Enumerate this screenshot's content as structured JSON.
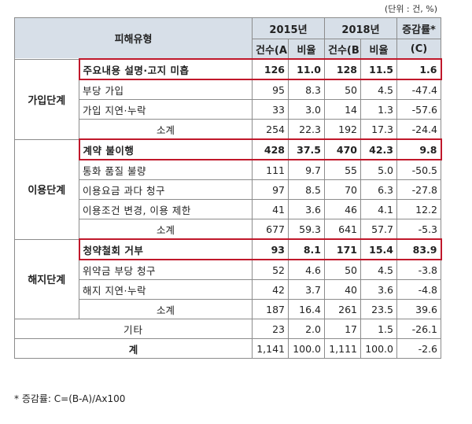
{
  "unit_note": "(단위 : 건, %)",
  "headers": {
    "type": "피해유형",
    "y2015": "2015년",
    "y2018": "2018년",
    "change": "증감률*",
    "count_a": "건수(A)",
    "ratio_a": "비율",
    "count_b": "건수(B)",
    "ratio_b": "비율",
    "change_c": "(C)"
  },
  "groups": [
    {
      "stage": "가입단계",
      "rows": [
        {
          "item": "주요내용 설명·고지 미흡",
          "c15": "126",
          "r15": "11.0",
          "c18": "128",
          "r18": "11.5",
          "chg": "1.6",
          "highlight": true
        },
        {
          "item": "부당 가입",
          "c15": "95",
          "r15": "8.3",
          "c18": "50",
          "r18": "4.5",
          "chg": "-47.4"
        },
        {
          "item": "가입 지연·누락",
          "c15": "33",
          "r15": "3.0",
          "c18": "14",
          "r18": "1.3",
          "chg": "-57.6"
        },
        {
          "item": "소계",
          "c15": "254",
          "r15": "22.3",
          "c18": "192",
          "r18": "17.3",
          "chg": "-24.4",
          "subtotal": true
        }
      ]
    },
    {
      "stage": "이용단계",
      "rows": [
        {
          "item": "계약 불이행",
          "c15": "428",
          "r15": "37.5",
          "c18": "470",
          "r18": "42.3",
          "chg": "9.8",
          "highlight": true
        },
        {
          "item": "통화 품질 불량",
          "c15": "111",
          "r15": "9.7",
          "c18": "55",
          "r18": "5.0",
          "chg": "-50.5"
        },
        {
          "item": "이용요금 과다 청구",
          "c15": "97",
          "r15": "8.5",
          "c18": "70",
          "r18": "6.3",
          "chg": "-27.8"
        },
        {
          "item": "이용조건 변경, 이용 제한",
          "c15": "41",
          "r15": "3.6",
          "c18": "46",
          "r18": "4.1",
          "chg": "12.2"
        },
        {
          "item": "소계",
          "c15": "677",
          "r15": "59.3",
          "c18": "641",
          "r18": "57.7",
          "chg": "-5.3",
          "subtotal": true
        }
      ]
    },
    {
      "stage": "해지단계",
      "rows": [
        {
          "item": "청약철회 거부",
          "c15": "93",
          "r15": "8.1",
          "c18": "171",
          "r18": "15.4",
          "chg": "83.9",
          "highlight": true
        },
        {
          "item": "위약금 부당 청구",
          "c15": "52",
          "r15": "4.6",
          "c18": "50",
          "r18": "4.5",
          "chg": "-3.8"
        },
        {
          "item": "해지 지연·누락",
          "c15": "42",
          "r15": "3.7",
          "c18": "40",
          "r18": "3.6",
          "chg": "-4.8"
        },
        {
          "item": "소계",
          "c15": "187",
          "r15": "16.4",
          "c18": "261",
          "r18": "23.5",
          "chg": "39.6",
          "subtotal": true
        }
      ]
    }
  ],
  "other": {
    "label": "기타",
    "c15": "23",
    "r15": "2.0",
    "c18": "17",
    "r18": "1.5",
    "chg": "-26.1"
  },
  "total": {
    "label": "계",
    "c15": "1,141",
    "r15": "100.0",
    "c18": "1,111",
    "r18": "100.0",
    "chg": "-2.6"
  },
  "footnote": "* 증감률: C=(B-A)/Ax100"
}
